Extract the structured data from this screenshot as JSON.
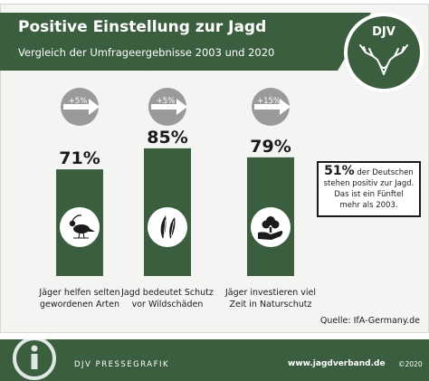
{
  "header": {
    "title": "Positive Einstellung zur Jagd",
    "subtitle": "Vergleich der Umfrageergebnisse 2003 und 2020"
  },
  "logo": {
    "text": "DJV"
  },
  "chart_data": {
    "type": "bar",
    "title": "Positive Einstellung zur Jagd",
    "subtitle": "Vergleich der Umfrageergebnisse 2003 und 2020",
    "categories": [
      [
        "Jäger helfen selten",
        "gewordenen Arten"
      ],
      [
        "Jagd bedeutet Schutz",
        "vor Wildschäden"
      ],
      [
        "Jäger investieren viel",
        "Zeit in Naturschutz"
      ]
    ],
    "values": [
      71,
      85,
      79
    ],
    "value_labels": [
      "71%",
      "85%",
      "79%"
    ],
    "changes": [
      "+5%",
      "+5%",
      "+15%"
    ],
    "icons": [
      "lapwing-bird-icon",
      "leaves-icon",
      "tree-in-hand-icon"
    ],
    "ylim": [
      0,
      100
    ],
    "bar_color": "#3b5e3f",
    "arrow_badge_color": "#9a9a9a"
  },
  "callout": {
    "big": "51%",
    "line1": "der Deutschen",
    "line2": "stehen positiv zur Jagd.",
    "line3": "Das ist ein Fünftel",
    "line4": "mehr als 2003."
  },
  "source": "Quelle: IfA-Germany.de",
  "footer": {
    "left": "DJV PRESSEGRAFIK",
    "middle": "www.jagdverband.de",
    "right": "©2020"
  },
  "colors": {
    "brand_green": "#3b5e3f",
    "panel_bg": "#f4f5f2",
    "text_dark": "#1b1b1b",
    "badge_grey": "#9a9a9a"
  }
}
